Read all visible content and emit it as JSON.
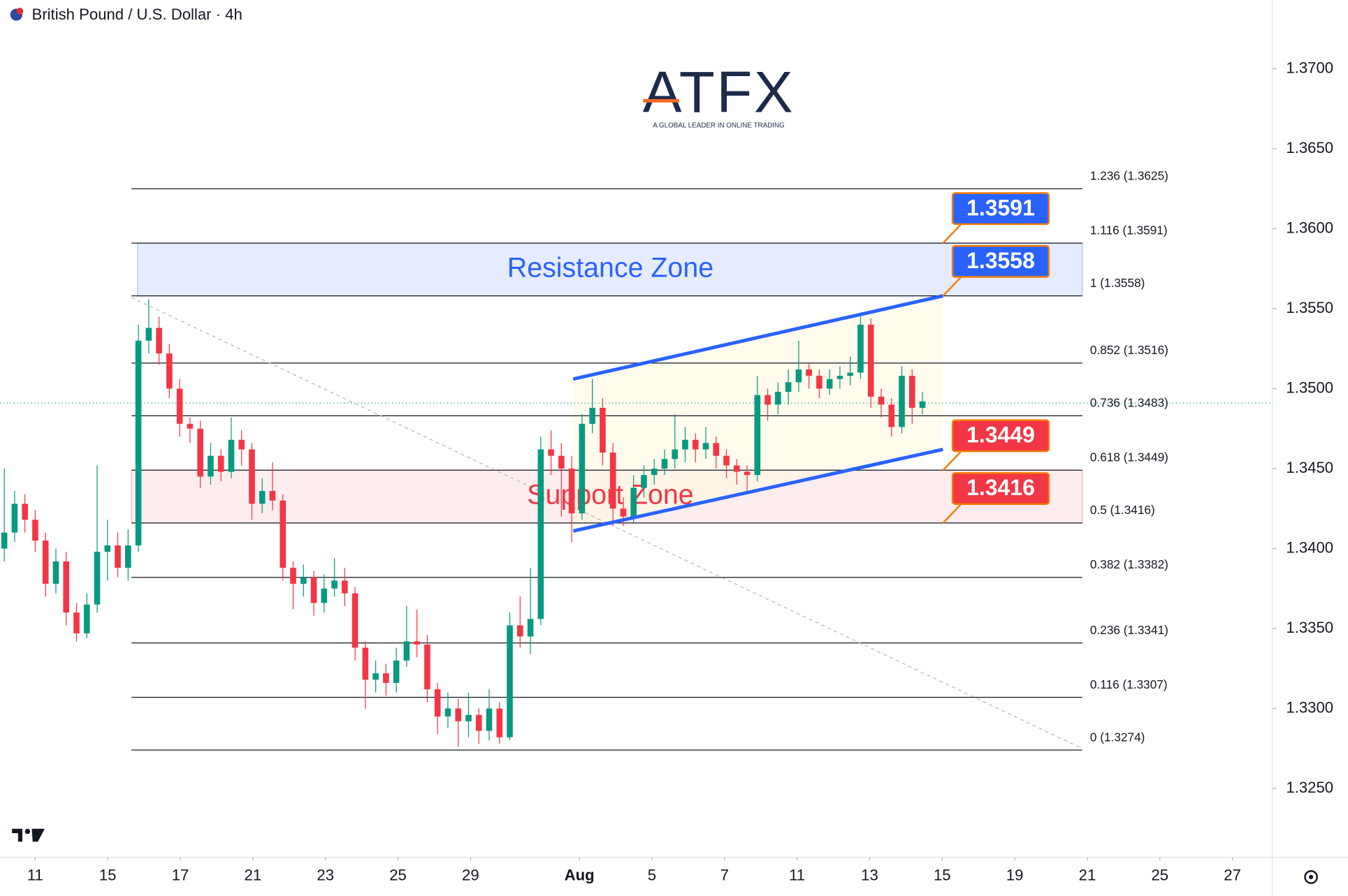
{
  "chart_data": {
    "type": "candlestick",
    "title": "British Pound / U.S. Dollar · 4h",
    "logo": {
      "brand": "ATFX",
      "tagline": "A GLOBAL LEADER IN ONLINE TRADING"
    },
    "up_color": "#089981",
    "down_color": "#f23645",
    "xlim": [
      -0.97,
      34.1
    ],
    "xticks": [
      {
        "value": 0,
        "label": "11"
      },
      {
        "value": 2,
        "label": "15"
      },
      {
        "value": 4,
        "label": "17"
      },
      {
        "value": 6,
        "label": "21"
      },
      {
        "value": 8,
        "label": "23"
      },
      {
        "value": 10,
        "label": "25"
      },
      {
        "value": 12,
        "label": "29"
      },
      {
        "value": 15,
        "label": "Aug"
      },
      {
        "value": 17,
        "label": "5"
      },
      {
        "value": 19,
        "label": "7"
      },
      {
        "value": 21,
        "label": "11"
      },
      {
        "value": 23,
        "label": "13"
      },
      {
        "value": 25,
        "label": "15"
      },
      {
        "value": 27,
        "label": "19"
      },
      {
        "value": 29,
        "label": "21"
      },
      {
        "value": 31,
        "label": "25"
      },
      {
        "value": 33,
        "label": "27"
      }
    ],
    "ylim": [
      1.3207,
      1.3743
    ],
    "yticks": [
      {
        "value": 1.325,
        "label": "1.3250"
      },
      {
        "value": 1.33,
        "label": "1.3300"
      },
      {
        "value": 1.335,
        "label": "1.3350"
      },
      {
        "value": 1.34,
        "label": "1.3400"
      },
      {
        "value": 1.345,
        "label": "1.3450"
      },
      {
        "value": 1.35,
        "label": "1.3500"
      },
      {
        "value": 1.355,
        "label": "1.3550"
      },
      {
        "value": 1.36,
        "label": "1.3600"
      },
      {
        "value": 1.365,
        "label": "1.3650"
      },
      {
        "value": 1.37,
        "label": "1.3700"
      }
    ],
    "open": [
      1.34,
      1.341,
      1.3428,
      1.3418,
      1.3405,
      1.3378,
      1.3392,
      1.336,
      1.3347,
      1.3365,
      1.3398,
      1.3402,
      1.3388,
      1.3402,
      1.353,
      1.3538,
      1.3522,
      1.35,
      1.3478,
      1.3475,
      1.3445,
      1.3458,
      1.3448,
      1.3468,
      1.3462,
      1.3428,
      1.3436,
      1.343,
      1.3388,
      1.3378,
      1.3382,
      1.3366,
      1.3375,
      1.338,
      1.3372,
      1.3338,
      1.3318,
      1.3322,
      1.3316,
      1.333,
      1.3342,
      1.334,
      1.3312,
      1.3295,
      1.33,
      1.3292,
      1.3296,
      1.3286,
      1.33,
      1.3282,
      1.3352,
      1.3345,
      1.3356,
      1.3462,
      1.3458,
      1.345,
      1.3422,
      1.3478,
      1.3488,
      1.346,
      1.3425,
      1.342,
      1.3438,
      1.3446,
      1.345,
      1.3456,
      1.3462,
      1.3468,
      1.3462,
      1.3466,
      1.3458,
      1.3452,
      1.3448,
      1.3446,
      1.3496,
      1.349,
      1.3498,
      1.3504,
      1.3512,
      1.3508,
      1.35,
      1.3506,
      1.3508,
      1.351,
      1.354,
      1.3495,
      1.349,
      1.3476,
      1.3508,
      1.3488
    ],
    "high": [
      1.345,
      1.3436,
      1.3434,
      1.3424,
      1.341,
      1.34,
      1.3398,
      1.3366,
      1.3372,
      1.3452,
      1.3418,
      1.341,
      1.3412,
      1.354,
      1.3556,
      1.3545,
      1.3528,
      1.3506,
      1.3482,
      1.348,
      1.3466,
      1.3462,
      1.3482,
      1.3474,
      1.3466,
      1.3444,
      1.3454,
      1.3434,
      1.3392,
      1.339,
      1.3386,
      1.3384,
      1.3394,
      1.3388,
      1.3376,
      1.3342,
      1.333,
      1.3328,
      1.3338,
      1.3364,
      1.3362,
      1.3346,
      1.3316,
      1.331,
      1.3306,
      1.331,
      1.33,
      1.3312,
      1.3304,
      1.336,
      1.337,
      1.3388,
      1.347,
      1.3474,
      1.3466,
      1.3458,
      1.3484,
      1.3506,
      1.3494,
      1.3466,
      1.3432,
      1.3446,
      1.3452,
      1.3456,
      1.3462,
      1.3484,
      1.3476,
      1.3472,
      1.3476,
      1.347,
      1.3462,
      1.3456,
      1.3452,
      1.3508,
      1.35,
      1.3504,
      1.3512,
      1.353,
      1.3516,
      1.3512,
      1.3512,
      1.3514,
      1.352,
      1.3546,
      1.3544,
      1.35,
      1.3494,
      1.3514,
      1.3512,
      1.3498
    ],
    "low": [
      1.3392,
      1.3404,
      1.341,
      1.3398,
      1.337,
      1.3372,
      1.3352,
      1.3342,
      1.3344,
      1.336,
      1.338,
      1.3382,
      1.338,
      1.3398,
      1.3522,
      1.3515,
      1.3494,
      1.347,
      1.3466,
      1.3438,
      1.344,
      1.3442,
      1.3444,
      1.3452,
      1.3418,
      1.3422,
      1.3424,
      1.338,
      1.3362,
      1.337,
      1.3358,
      1.336,
      1.337,
      1.3364,
      1.333,
      1.33,
      1.331,
      1.3308,
      1.331,
      1.3326,
      1.3332,
      1.3304,
      1.3284,
      1.3288,
      1.3276,
      1.3282,
      1.3278,
      1.328,
      1.3278,
      1.328,
      1.3338,
      1.3334,
      1.3352,
      1.3446,
      1.342,
      1.3404,
      1.3418,
      1.3472,
      1.3452,
      1.3414,
      1.3414,
      1.3416,
      1.3432,
      1.344,
      1.3446,
      1.345,
      1.3454,
      1.3454,
      1.3456,
      1.345,
      1.3444,
      1.344,
      1.3436,
      1.3442,
      1.348,
      1.3484,
      1.349,
      1.3498,
      1.35,
      1.3494,
      1.3496,
      1.35,
      1.3502,
      1.3506,
      1.3488,
      1.3482,
      1.347,
      1.3472,
      1.3478,
      1.3484
    ],
    "close": [
      1.341,
      1.3428,
      1.3418,
      1.3405,
      1.3378,
      1.3392,
      1.336,
      1.3347,
      1.3365,
      1.3398,
      1.3402,
      1.3388,
      1.3402,
      1.353,
      1.3538,
      1.3522,
      1.35,
      1.3478,
      1.3475,
      1.3445,
      1.3458,
      1.3448,
      1.3468,
      1.3462,
      1.3428,
      1.3436,
      1.343,
      1.3388,
      1.3378,
      1.3382,
      1.3366,
      1.3375,
      1.338,
      1.3372,
      1.3338,
      1.3318,
      1.3322,
      1.3316,
      1.333,
      1.3342,
      1.334,
      1.3312,
      1.3295,
      1.33,
      1.3292,
      1.3296,
      1.3286,
      1.33,
      1.3282,
      1.3352,
      1.3345,
      1.3356,
      1.3462,
      1.3458,
      1.345,
      1.3422,
      1.3478,
      1.3488,
      1.346,
      1.3425,
      1.342,
      1.3438,
      1.3446,
      1.345,
      1.3456,
      1.3462,
      1.3468,
      1.3462,
      1.3466,
      1.3458,
      1.3452,
      1.3448,
      1.3446,
      1.3496,
      1.349,
      1.3498,
      1.3504,
      1.3512,
      1.3508,
      1.35,
      1.3506,
      1.3508,
      1.351,
      1.354,
      1.3495,
      1.349,
      1.3476,
      1.3508,
      1.3488,
      1.3492
    ],
    "last_price": 1.3491,
    "fib_levels": [
      {
        "label": "1.236 (1.3625)",
        "value": 1.3625
      },
      {
        "label": "1.116 (1.3591)",
        "value": 1.3591
      },
      {
        "label": "1 (1.3558)",
        "value": 1.3558
      },
      {
        "label": "0.852 (1.3516)",
        "value": 1.3516
      },
      {
        "label": "0.736 (1.3483)",
        "value": 1.3483
      },
      {
        "label": "0.618 (1.3449)",
        "value": 1.3449
      },
      {
        "label": "0.5 (1.3416)",
        "value": 1.3416
      },
      {
        "label": "0.382 (1.3382)",
        "value": 1.3382
      },
      {
        "label": "0.236 (1.3341)",
        "value": 1.3341
      },
      {
        "label": "0.116 (1.3307)",
        "value": 1.3307
      },
      {
        "label": "0 (1.3274)",
        "value": 1.3274
      }
    ],
    "zones": [
      {
        "label": "Resistance Zone",
        "range": [
          1.3558,
          1.3591
        ],
        "color": "#2962ff"
      },
      {
        "label": "Support Zone",
        "range": [
          1.3416,
          1.3449
        ],
        "color": "#f23645"
      }
    ],
    "price_tags": [
      {
        "value": 1.3591,
        "color": "#2962ff"
      },
      {
        "value": 1.3558,
        "color": "#2962ff"
      },
      {
        "value": 1.3449,
        "color": "#f23645"
      },
      {
        "value": 1.3416,
        "color": "#f23645"
      }
    ],
    "channel": [
      {
        "x": [
          14.83,
          25.02
        ],
        "y": [
          1.3506,
          1.3558
        ],
        "color": "#2962ff"
      },
      {
        "x": [
          14.83,
          25.02
        ],
        "y": [
          1.3411,
          1.3462
        ],
        "color": "#2962ff"
      }
    ],
    "guide": {
      "x": [
        2.65,
        28.86
      ],
      "y": [
        1.3557,
        1.3275
      ]
    }
  }
}
